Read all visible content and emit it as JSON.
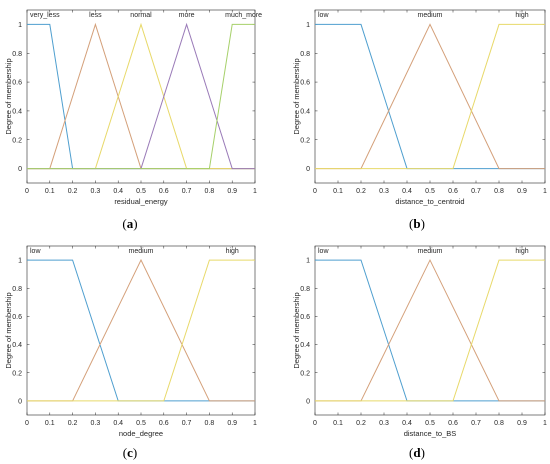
{
  "chart_data": [
    {
      "type": "line",
      "caption": "a",
      "xlabel": "residual_energy",
      "ylabel": "Degree of membership",
      "xlim": [
        0,
        1
      ],
      "ylim": [
        -0.1,
        1.1
      ],
      "xticks": [
        "0",
        "0.1",
        "0.2",
        "0.3",
        "0.4",
        "0.5",
        "0.6",
        "0.7",
        "0.8",
        "0.9",
        "1"
      ],
      "yticks": [
        "0",
        "0.2",
        "0.4",
        "0.6",
        "0.8",
        "1"
      ],
      "grid": false,
      "series": [
        {
          "name": "very_less",
          "color": "#4f9fcf",
          "x": [
            0,
            0.1,
            0.2,
            1
          ],
          "y": [
            1,
            1,
            0,
            0
          ]
        },
        {
          "name": "less",
          "color": "#d4a07a",
          "x": [
            0,
            0.1,
            0.3,
            0.5,
            1
          ],
          "y": [
            0,
            0,
            1,
            0,
            0
          ]
        },
        {
          "name": "normal",
          "color": "#e8d96a",
          "x": [
            0,
            0.3,
            0.5,
            0.7,
            1
          ],
          "y": [
            0,
            0,
            1,
            0,
            0
          ]
        },
        {
          "name": "more",
          "color": "#9a7bb8",
          "x": [
            0,
            0.5,
            0.7,
            0.9,
            1
          ],
          "y": [
            0,
            0,
            1,
            0,
            0
          ]
        },
        {
          "name": "much_more",
          "color": "#a6d06a",
          "x": [
            0,
            0.8,
            0.9,
            1
          ],
          "y": [
            0,
            0,
            1,
            1
          ]
        }
      ]
    },
    {
      "type": "line",
      "caption": "b",
      "xlabel": "distance_to_centroid",
      "ylabel": "Degree of membership",
      "xlim": [
        0,
        1
      ],
      "ylim": [
        -0.1,
        1.1
      ],
      "xticks": [
        "0",
        "0.1",
        "0.2",
        "0.3",
        "0.4",
        "0.5",
        "0.6",
        "0.7",
        "0.8",
        "0.9",
        "1"
      ],
      "yticks": [
        "0",
        "0.2",
        "0.4",
        "0.6",
        "0.8",
        "1"
      ],
      "grid": false,
      "series": [
        {
          "name": "low",
          "color": "#4f9fcf",
          "x": [
            0,
            0.2,
            0.4,
            1
          ],
          "y": [
            1,
            1,
            0,
            0
          ]
        },
        {
          "name": "medium",
          "color": "#d4a07a",
          "x": [
            0,
            0.2,
            0.5,
            0.8,
            1
          ],
          "y": [
            0,
            0,
            1,
            0,
            0
          ]
        },
        {
          "name": "high",
          "color": "#e8d96a",
          "x": [
            0,
            0.6,
            0.8,
            1
          ],
          "y": [
            0,
            0,
            1,
            1
          ]
        }
      ]
    },
    {
      "type": "line",
      "caption": "c",
      "xlabel": "node_degree",
      "ylabel": "Degree of membership",
      "xlim": [
        0,
        1
      ],
      "ylim": [
        -0.1,
        1.1
      ],
      "xticks": [
        "0",
        "0.1",
        "0.2",
        "0.3",
        "0.4",
        "0.5",
        "0.6",
        "0.7",
        "0.8",
        "0.9",
        "1"
      ],
      "yticks": [
        "0",
        "0.2",
        "0.4",
        "0.6",
        "0.8",
        "1"
      ],
      "grid": false,
      "series": [
        {
          "name": "low",
          "color": "#4f9fcf",
          "x": [
            0,
            0.2,
            0.4,
            1
          ],
          "y": [
            1,
            1,
            0,
            0
          ]
        },
        {
          "name": "medium",
          "color": "#d4a07a",
          "x": [
            0,
            0.2,
            0.5,
            0.8,
            1
          ],
          "y": [
            0,
            0,
            1,
            0,
            0
          ]
        },
        {
          "name": "high",
          "color": "#e8d96a",
          "x": [
            0,
            0.6,
            0.8,
            1
          ],
          "y": [
            0,
            0,
            1,
            1
          ]
        }
      ]
    },
    {
      "type": "line",
      "caption": "d",
      "xlabel": "distance_to_BS",
      "ylabel": "Degree of membership",
      "xlim": [
        0,
        1
      ],
      "ylim": [
        -0.1,
        1.1
      ],
      "xticks": [
        "0",
        "0.1",
        "0.2",
        "0.3",
        "0.4",
        "0.5",
        "0.6",
        "0.7",
        "0.8",
        "0.9",
        "1"
      ],
      "yticks": [
        "0",
        "0.2",
        "0.4",
        "0.6",
        "0.8",
        "1"
      ],
      "grid": false,
      "series": [
        {
          "name": "low",
          "color": "#4f9fcf",
          "x": [
            0,
            0.2,
            0.4,
            1
          ],
          "y": [
            1,
            1,
            0,
            0
          ]
        },
        {
          "name": "medium",
          "color": "#d4a07a",
          "x": [
            0,
            0.2,
            0.5,
            0.8,
            1
          ],
          "y": [
            0,
            0,
            1,
            0,
            0
          ]
        },
        {
          "name": "high",
          "color": "#e8d96a",
          "x": [
            0,
            0.6,
            0.8,
            1
          ],
          "y": [
            0,
            0,
            1,
            1
          ]
        }
      ]
    }
  ]
}
